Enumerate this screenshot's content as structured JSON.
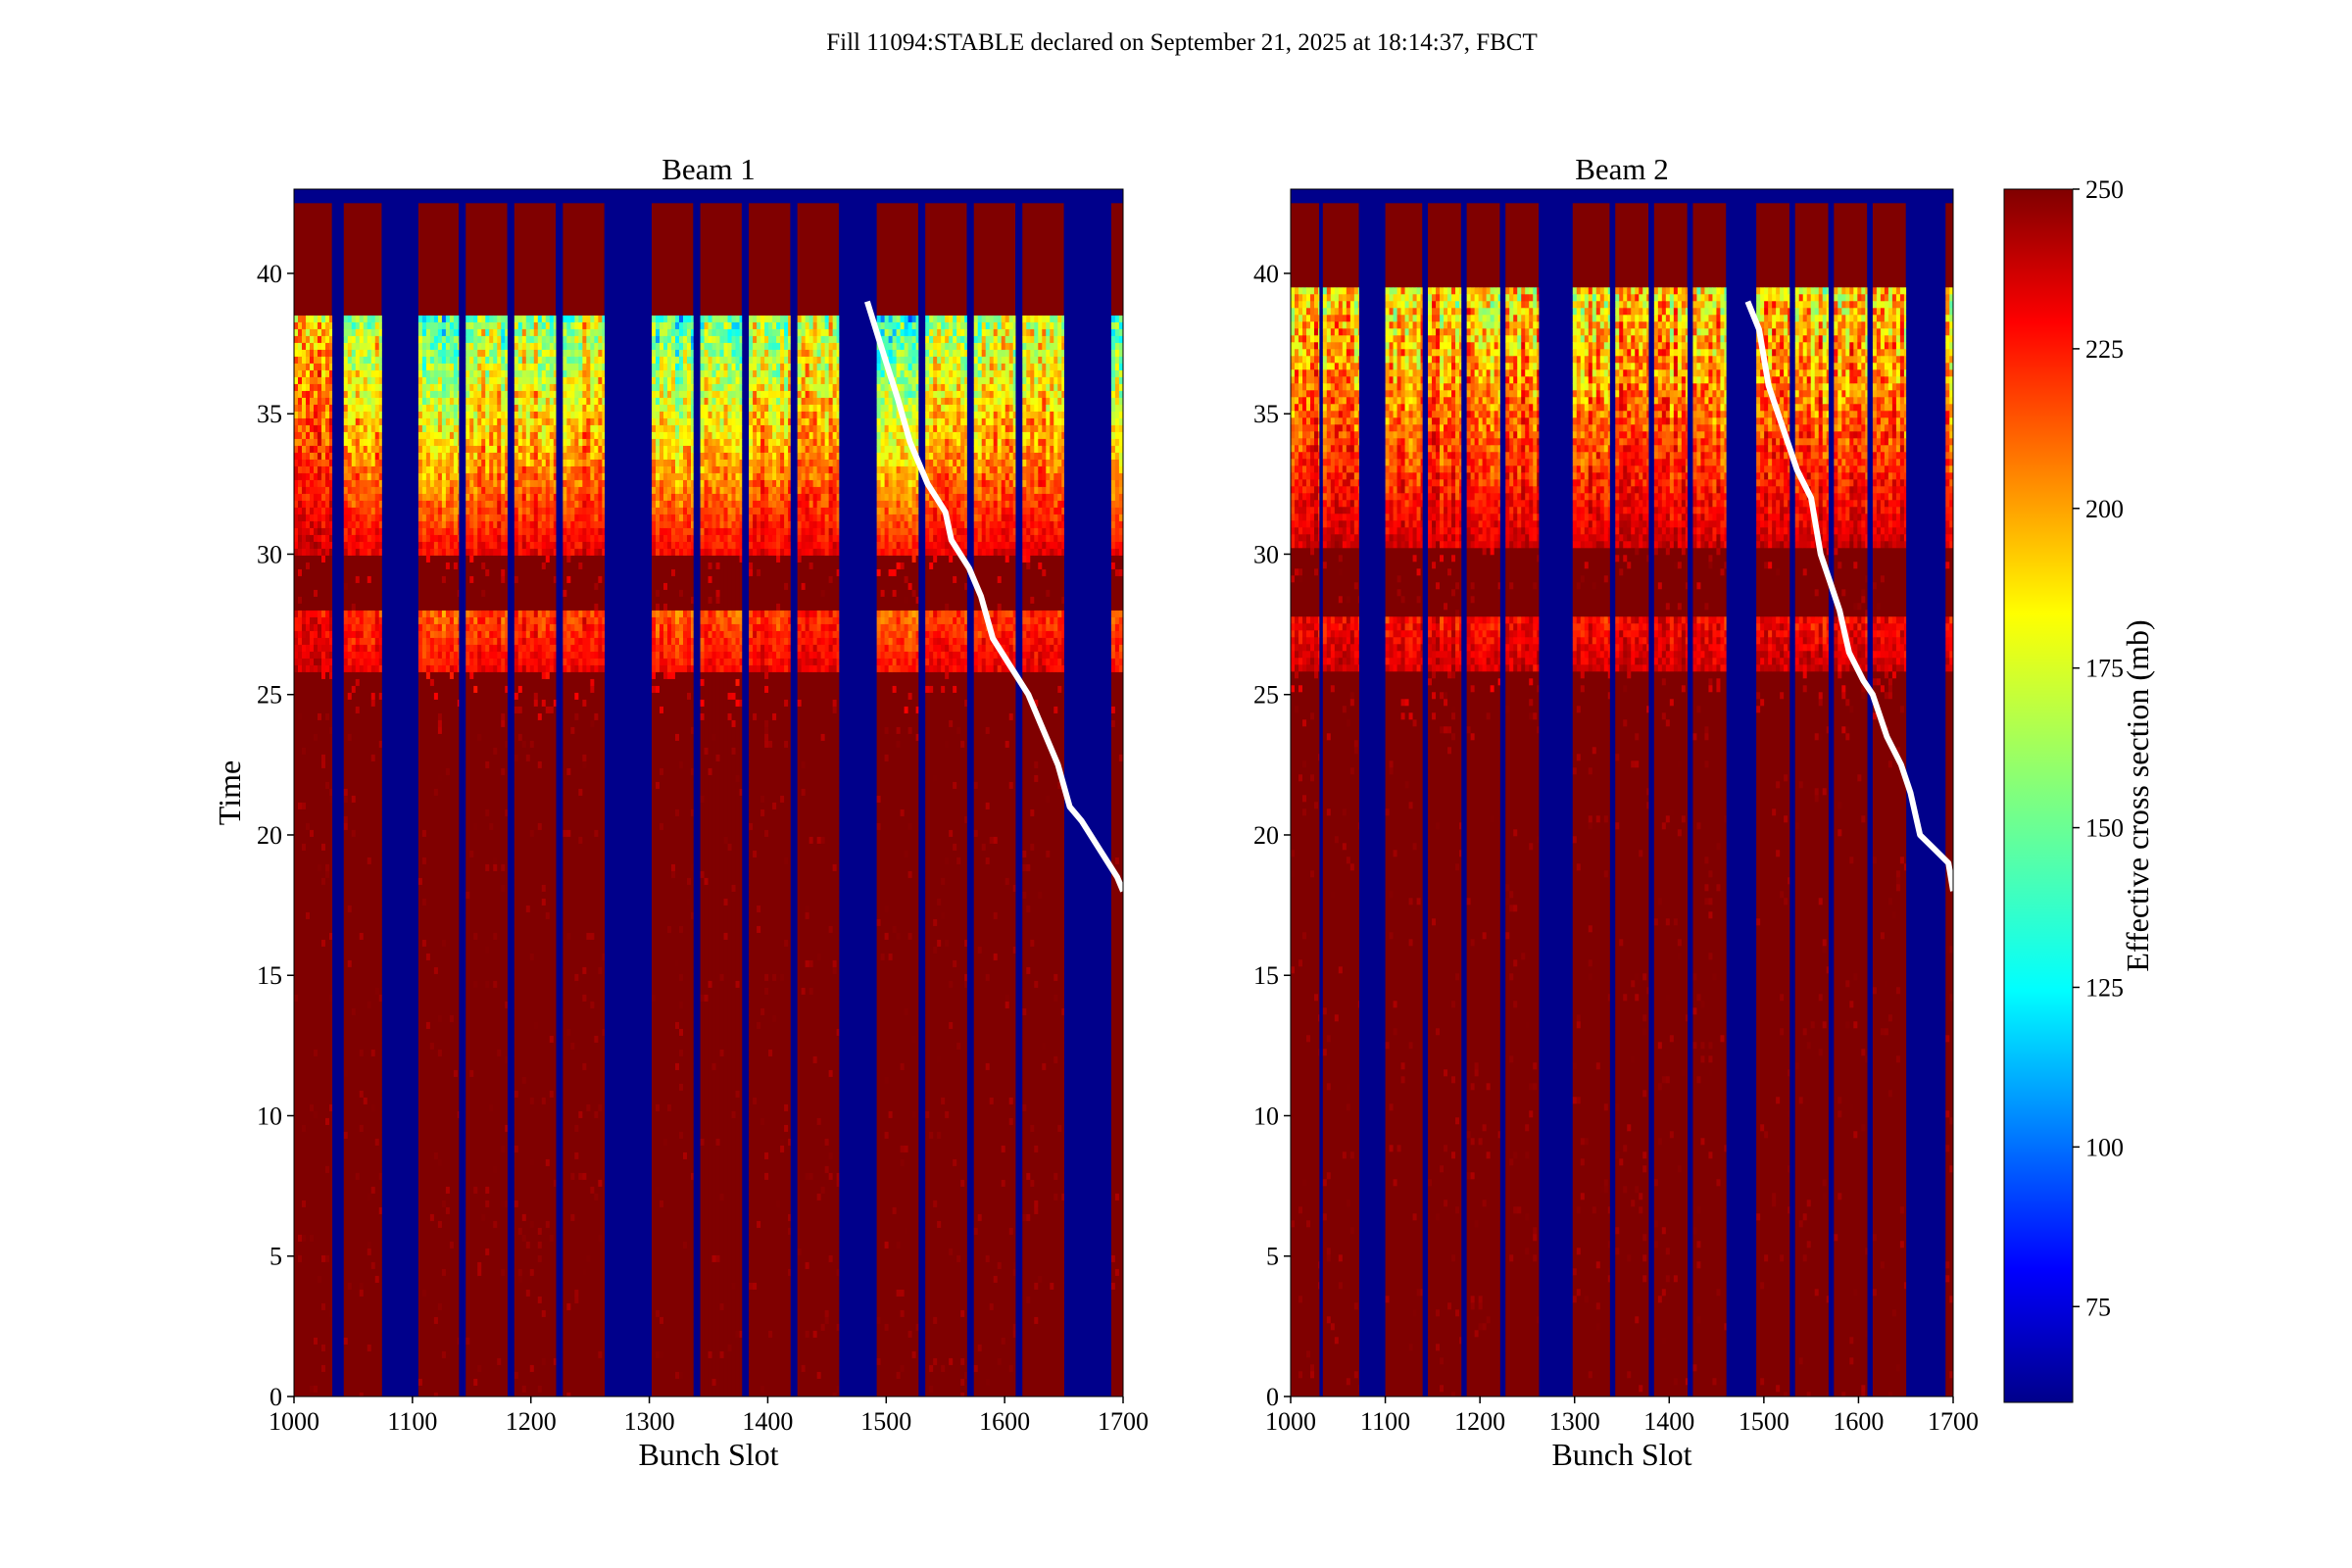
{
  "figure": {
    "suptitle": "Fill 11094:STABLE declared on September 21, 2025 at 18:14:37, FBCT"
  },
  "colors": {
    "background": "#ffffff",
    "no_bunch": "#00008b",
    "saturated": "#800000",
    "overlay_line": "#ffffff"
  },
  "chart_data": [
    {
      "type": "heatmap",
      "title": "Beam 1",
      "xlabel": "Bunch Slot",
      "ylabel": "Time",
      "xlim": [
        1000,
        1700
      ],
      "ylim": [
        0,
        43
      ],
      "xticks": [
        1000,
        1100,
        1200,
        1300,
        1400,
        1500,
        1600,
        1700
      ],
      "xtick_labels": [
        "1000",
        "1100",
        "1200",
        "1300",
        "1400",
        "1500",
        "1600",
        "1700"
      ],
      "yticks": [
        0,
        5,
        10,
        15,
        20,
        25,
        30,
        35,
        40
      ],
      "ytick_labels": [
        "0",
        "5",
        "10",
        "15",
        "20",
        "25",
        "30",
        "35",
        "40"
      ],
      "colormap": "jet",
      "clim": [
        60,
        250
      ],
      "data_end_time": 38.5,
      "bunch_trains": [
        {
          "start": 1000,
          "end": 1032,
          "depletion": 0.55
        },
        {
          "start": 1042,
          "end": 1074,
          "depletion": 0.75
        },
        {
          "start": 1105,
          "end": 1139,
          "depletion": 1.0
        },
        {
          "start": 1145,
          "end": 1180,
          "depletion": 0.85
        },
        {
          "start": 1186,
          "end": 1221,
          "depletion": 0.8
        },
        {
          "start": 1227,
          "end": 1262,
          "depletion": 0.75
        },
        {
          "start": 1302,
          "end": 1337,
          "depletion": 1.0
        },
        {
          "start": 1343,
          "end": 1378,
          "depletion": 0.85
        },
        {
          "start": 1384,
          "end": 1419,
          "depletion": 0.8
        },
        {
          "start": 1425,
          "end": 1460,
          "depletion": 0.75
        },
        {
          "start": 1492,
          "end": 1527,
          "depletion": 1.0
        },
        {
          "start": 1533,
          "end": 1568,
          "depletion": 0.85
        },
        {
          "start": 1574,
          "end": 1609,
          "depletion": 0.8
        },
        {
          "start": 1615,
          "end": 1650,
          "depletion": 0.7
        },
        {
          "start": 1690,
          "end": 1700,
          "depletion": 1.0
        }
      ],
      "overlay_curve": {
        "x": [
          1484,
          1495,
          1510,
          1520,
          1535,
          1550,
          1555,
          1570,
          1580,
          1590,
          1605,
          1620,
          1630,
          1645,
          1655,
          1665,
          1680,
          1695,
          1700
        ],
        "y": [
          39,
          37.5,
          35.5,
          34,
          32.5,
          31.5,
          30.5,
          29.5,
          28.5,
          27,
          26,
          25,
          24,
          22.5,
          21,
          20.5,
          19.5,
          18.5,
          18
        ]
      }
    },
    {
      "type": "heatmap",
      "title": "Beam 2",
      "xlabel": "Bunch Slot",
      "ylabel": "",
      "xlim": [
        1000,
        1700
      ],
      "ylim": [
        0,
        43
      ],
      "xticks": [
        1000,
        1100,
        1200,
        1300,
        1400,
        1500,
        1600,
        1700
      ],
      "xtick_labels": [
        "1000",
        "1100",
        "1200",
        "1300",
        "1400",
        "1500",
        "1600",
        "1700"
      ],
      "yticks": [
        0,
        5,
        10,
        15,
        20,
        25,
        30,
        35,
        40
      ],
      "ytick_labels": [
        "0",
        "5",
        "10",
        "15",
        "20",
        "25",
        "30",
        "35",
        "40"
      ],
      "colormap": "jet",
      "clim": [
        60,
        250
      ],
      "data_end_time": 39.5,
      "bunch_trains": [
        {
          "start": 1000,
          "end": 1030,
          "depletion": 0.6
        },
        {
          "start": 1034,
          "end": 1072,
          "depletion": 0.6
        },
        {
          "start": 1100,
          "end": 1139,
          "depletion": 0.6
        },
        {
          "start": 1145,
          "end": 1180,
          "depletion": 0.6
        },
        {
          "start": 1186,
          "end": 1221,
          "depletion": 0.6
        },
        {
          "start": 1227,
          "end": 1262,
          "depletion": 0.6
        },
        {
          "start": 1298,
          "end": 1337,
          "depletion": 0.6
        },
        {
          "start": 1343,
          "end": 1378,
          "depletion": 0.6
        },
        {
          "start": 1384,
          "end": 1419,
          "depletion": 0.6
        },
        {
          "start": 1425,
          "end": 1460,
          "depletion": 0.6
        },
        {
          "start": 1492,
          "end": 1527,
          "depletion": 0.6
        },
        {
          "start": 1533,
          "end": 1568,
          "depletion": 0.6
        },
        {
          "start": 1574,
          "end": 1609,
          "depletion": 0.6
        },
        {
          "start": 1615,
          "end": 1650,
          "depletion": 0.6
        },
        {
          "start": 1692,
          "end": 1700,
          "depletion": 0.6
        }
      ],
      "overlay_curve": {
        "x": [
          1483,
          1495,
          1505,
          1520,
          1535,
          1550,
          1560,
          1570,
          1580,
          1590,
          1605,
          1615,
          1630,
          1645,
          1655,
          1665,
          1680,
          1695,
          1700
        ],
        "y": [
          39,
          38,
          36,
          34.5,
          33,
          32,
          30,
          29,
          28,
          26.5,
          25.5,
          25,
          23.5,
          22.5,
          21.5,
          20,
          19.5,
          19,
          18
        ]
      }
    }
  ],
  "colorbar": {
    "label": "Effective cross section (mb)",
    "range": [
      60,
      250
    ],
    "ticks": [
      75,
      100,
      125,
      150,
      175,
      200,
      225,
      250
    ],
    "tick_labels": [
      "75",
      "100",
      "125",
      "150",
      "175",
      "200",
      "225",
      "250"
    ]
  }
}
